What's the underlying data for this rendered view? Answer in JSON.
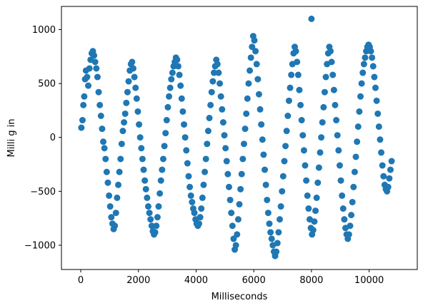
{
  "chart_data": {
    "type": "scatter",
    "title": "",
    "xlabel": "Milliseconds",
    "ylabel": "Milli g in",
    "xlim": [
      -670,
      11670
    ],
    "ylim": [
      -1225,
      1215
    ],
    "xticks": [
      0,
      2000,
      4000,
      6000,
      8000,
      10000
    ],
    "xtick_labels": [
      "0",
      "2000",
      "4000",
      "6000",
      "8000",
      "10000"
    ],
    "yticks": [
      -1000,
      -500,
      0,
      500,
      1000
    ],
    "ytick_labels": [
      "−1000",
      "−500",
      "0",
      "500",
      "1000"
    ],
    "grid": false,
    "legend": "none",
    "marker_color": "#1f77b4",
    "series": [
      {
        "points": [
          [
            20,
            90
          ],
          [
            60,
            160
          ],
          [
            90,
            300
          ],
          [
            120,
            380
          ],
          [
            150,
            540
          ],
          [
            180,
            620
          ],
          [
            220,
            560
          ],
          [
            260,
            480
          ],
          [
            300,
            640
          ],
          [
            340,
            720
          ],
          [
            380,
            780
          ],
          [
            420,
            800
          ],
          [
            460,
            760
          ],
          [
            500,
            700
          ],
          [
            540,
            640
          ],
          [
            580,
            560
          ],
          [
            620,
            420
          ],
          [
            660,
            300
          ],
          [
            700,
            200
          ],
          [
            740,
            80
          ],
          [
            780,
            -40
          ],
          [
            820,
            -100
          ],
          [
            860,
            -200
          ],
          [
            900,
            -320
          ],
          [
            940,
            -420
          ],
          [
            980,
            -540
          ],
          [
            1020,
            -640
          ],
          [
            1060,
            -740
          ],
          [
            1100,
            -800
          ],
          [
            1140,
            -850
          ],
          [
            1180,
            -820
          ],
          [
            1220,
            -700
          ],
          [
            1260,
            -560
          ],
          [
            1300,
            -440
          ],
          [
            1340,
            -320
          ],
          [
            1380,
            -200
          ],
          [
            1420,
            -60
          ],
          [
            1460,
            60
          ],
          [
            1500,
            140
          ],
          [
            1540,
            220
          ],
          [
            1580,
            320
          ],
          [
            1620,
            420
          ],
          [
            1660,
            520
          ],
          [
            1700,
            620
          ],
          [
            1740,
            680
          ],
          [
            1780,
            700
          ],
          [
            1820,
            640
          ],
          [
            1860,
            560
          ],
          [
            1900,
            460
          ],
          [
            1940,
            360
          ],
          [
            1980,
            240
          ],
          [
            2020,
            120
          ],
          [
            2060,
            0
          ],
          [
            2100,
            -100
          ],
          [
            2140,
            -200
          ],
          [
            2180,
            -300
          ],
          [
            2220,
            -400
          ],
          [
            2260,
            -480
          ],
          [
            2300,
            -560
          ],
          [
            2340,
            -640
          ],
          [
            2380,
            -700
          ],
          [
            2420,
            -760
          ],
          [
            2460,
            -820
          ],
          [
            2500,
            -870
          ],
          [
            2540,
            -900
          ],
          [
            2580,
            -880
          ],
          [
            2620,
            -820
          ],
          [
            2660,
            -740
          ],
          [
            2700,
            -640
          ],
          [
            2740,
            -520
          ],
          [
            2780,
            -400
          ],
          [
            2820,
            -300
          ],
          [
            2860,
            -200
          ],
          [
            2900,
            -80
          ],
          [
            2940,
            40
          ],
          [
            2980,
            160
          ],
          [
            3020,
            280
          ],
          [
            3060,
            380
          ],
          [
            3100,
            460
          ],
          [
            3140,
            540
          ],
          [
            3180,
            600
          ],
          [
            3220,
            660
          ],
          [
            3260,
            700
          ],
          [
            3300,
            740
          ],
          [
            3340,
            720
          ],
          [
            3380,
            660
          ],
          [
            3420,
            580
          ],
          [
            3460,
            480
          ],
          [
            3500,
            360
          ],
          [
            3540,
            240
          ],
          [
            3580,
            120
          ],
          [
            3620,
            0
          ],
          [
            3660,
            -120
          ],
          [
            3700,
            -240
          ],
          [
            3740,
            -360
          ],
          [
            3780,
            -460
          ],
          [
            3820,
            -540
          ],
          [
            3860,
            -600
          ],
          [
            3900,
            -660
          ],
          [
            3940,
            -700
          ],
          [
            3980,
            -760
          ],
          [
            4020,
            -800
          ],
          [
            4060,
            -820
          ],
          [
            4100,
            -800
          ],
          [
            4140,
            -740
          ],
          [
            4180,
            -660
          ],
          [
            4220,
            -560
          ],
          [
            4260,
            -440
          ],
          [
            4300,
            -320
          ],
          [
            4340,
            -200
          ],
          [
            4380,
            -60
          ],
          [
            4420,
            60
          ],
          [
            4460,
            180
          ],
          [
            4500,
            300
          ],
          [
            4540,
            420
          ],
          [
            4580,
            520
          ],
          [
            4620,
            600
          ],
          [
            4660,
            660
          ],
          [
            4700,
            720
          ],
          [
            4740,
            680
          ],
          [
            4780,
            600
          ],
          [
            4820,
            500
          ],
          [
            4860,
            380
          ],
          [
            4900,
            260
          ],
          [
            4940,
            140
          ],
          [
            4980,
            20
          ],
          [
            5020,
            -100
          ],
          [
            5060,
            -220
          ],
          [
            5100,
            -340
          ],
          [
            5140,
            -460
          ],
          [
            5180,
            -580
          ],
          [
            5220,
            -700
          ],
          [
            5260,
            -820
          ],
          [
            5300,
            -940
          ],
          [
            5340,
            -1040
          ],
          [
            5380,
            -1000
          ],
          [
            5420,
            -900
          ],
          [
            5460,
            -760
          ],
          [
            5500,
            -620
          ],
          [
            5540,
            -480
          ],
          [
            5580,
            -340
          ],
          [
            5620,
            -200
          ],
          [
            5660,
            -60
          ],
          [
            5700,
            80
          ],
          [
            5740,
            220
          ],
          [
            5780,
            360
          ],
          [
            5820,
            500
          ],
          [
            5860,
            620
          ],
          [
            5900,
            740
          ],
          [
            5940,
            840
          ],
          [
            5980,
            940
          ],
          [
            6020,
            900
          ],
          [
            6060,
            800
          ],
          [
            6100,
            680
          ],
          [
            6140,
            540
          ],
          [
            6180,
            400
          ],
          [
            6220,
            260
          ],
          [
            6260,
            120
          ],
          [
            6300,
            -20
          ],
          [
            6340,
            -160
          ],
          [
            6380,
            -300
          ],
          [
            6420,
            -440
          ],
          [
            6460,
            -580
          ],
          [
            6500,
            -700
          ],
          [
            6540,
            -800
          ],
          [
            6580,
            -880
          ],
          [
            6620,
            -940
          ],
          [
            6660,
            -1000
          ],
          [
            6700,
            -1060
          ],
          [
            6740,
            -1100
          ],
          [
            6780,
            -1060
          ],
          [
            6820,
            -980
          ],
          [
            6860,
            -880
          ],
          [
            6900,
            -760
          ],
          [
            6940,
            -640
          ],
          [
            6980,
            -500
          ],
          [
            7020,
            -360
          ],
          [
            7060,
            -220
          ],
          [
            7100,
            -80
          ],
          [
            7140,
            60
          ],
          [
            7180,
            200
          ],
          [
            7220,
            340
          ],
          [
            7260,
            460
          ],
          [
            7300,
            580
          ],
          [
            7340,
            680
          ],
          [
            7380,
            780
          ],
          [
            7420,
            840
          ],
          [
            7460,
            800
          ],
          [
            7500,
            700
          ],
          [
            7540,
            580
          ],
          [
            7580,
            440
          ],
          [
            7620,
            300
          ],
          [
            7660,
            160
          ],
          [
            7700,
            20
          ],
          [
            7740,
            -120
          ],
          [
            7780,
            -260
          ],
          [
            7820,
            -400
          ],
          [
            7860,
            -540
          ],
          [
            7900,
            -660
          ],
          [
            7940,
            -760
          ],
          [
            7980,
            -840
          ],
          [
            8000,
            1100
          ],
          [
            8020,
            -900
          ],
          [
            8060,
            -860
          ],
          [
            8100,
            -780
          ],
          [
            8140,
            -680
          ],
          [
            8180,
            -560
          ],
          [
            8220,
            -420
          ],
          [
            8260,
            -280
          ],
          [
            8300,
            -140
          ],
          [
            8340,
            0
          ],
          [
            8380,
            140
          ],
          [
            8420,
            280
          ],
          [
            8460,
            420
          ],
          [
            8500,
            560
          ],
          [
            8540,
            680
          ],
          [
            8580,
            780
          ],
          [
            8620,
            840
          ],
          [
            8660,
            800
          ],
          [
            8700,
            700
          ],
          [
            8740,
            580
          ],
          [
            8780,
            440
          ],
          [
            8820,
            300
          ],
          [
            8860,
            160
          ],
          [
            8900,
            20
          ],
          [
            8940,
            -120
          ],
          [
            8980,
            -260
          ],
          [
            9020,
            -400
          ],
          [
            9060,
            -540
          ],
          [
            9100,
            -660
          ],
          [
            9140,
            -760
          ],
          [
            9180,
            -840
          ],
          [
            9220,
            -900
          ],
          [
            9260,
            -940
          ],
          [
            9300,
            -900
          ],
          [
            9340,
            -820
          ],
          [
            9380,
            -720
          ],
          [
            9420,
            -600
          ],
          [
            9460,
            -460
          ],
          [
            9500,
            -320
          ],
          [
            9540,
            -180
          ],
          [
            9580,
            -40
          ],
          [
            9620,
            100
          ],
          [
            9660,
            240
          ],
          [
            9700,
            380
          ],
          [
            9740,
            500
          ],
          [
            9780,
            600
          ],
          [
            9820,
            680
          ],
          [
            9860,
            740
          ],
          [
            9900,
            800
          ],
          [
            9940,
            840
          ],
          [
            9980,
            860
          ],
          [
            10020,
            840
          ],
          [
            10060,
            800
          ],
          [
            10100,
            740
          ],
          [
            10140,
            660
          ],
          [
            10180,
            560
          ],
          [
            10220,
            460
          ],
          [
            10260,
            340
          ],
          [
            10300,
            220
          ],
          [
            10340,
            100
          ],
          [
            10380,
            -20
          ],
          [
            10420,
            -140
          ],
          [
            10460,
            -260
          ],
          [
            10500,
            -360
          ],
          [
            10540,
            -440
          ],
          [
            10580,
            -480
          ],
          [
            10620,
            -500
          ],
          [
            10660,
            -460
          ],
          [
            10700,
            -380
          ],
          [
            10740,
            -300
          ],
          [
            10780,
            -220
          ]
        ]
      }
    ]
  }
}
